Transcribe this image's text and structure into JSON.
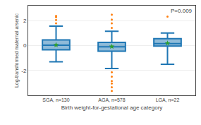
{
  "chart_data": {
    "type": "box",
    "categories": [
      "SGA, n=130",
      "AGA, n=578",
      "LGA, n=22"
    ],
    "xlabel": "Birth weight-for-gestational age category",
    "ylabel": "Log-transformed maternal arsenic",
    "annotation": "P=0.009",
    "ylim": [
      -4,
      3.2
    ],
    "yticks": [
      -2,
      0,
      2
    ],
    "grid": true,
    "boxes": [
      {
        "q1": -0.35,
        "median": 0.02,
        "q3": 0.45,
        "mean": 0.05,
        "whislo": -1.3,
        "whishi": 1.55,
        "fliers_high": [
          1.78,
          2.05,
          2.28,
          2.38
        ],
        "fliers_low": []
      },
      {
        "q1": -0.45,
        "median": -0.1,
        "q3": 0.25,
        "mean": -0.08,
        "whislo": -1.85,
        "whishi": 1.15,
        "fliers_high": [
          1.42,
          1.78,
          2.08,
          2.48
        ],
        "fliers_low": [
          -2.15,
          -2.5,
          -2.85,
          -3.05,
          -3.35,
          -3.65
        ]
      },
      {
        "q1": -0.05,
        "median": 0.15,
        "q3": 0.55,
        "mean": 0.18,
        "whislo": -1.5,
        "whishi": 1.0,
        "fliers_high": [
          2.32
        ],
        "fliers_low": []
      }
    ]
  }
}
